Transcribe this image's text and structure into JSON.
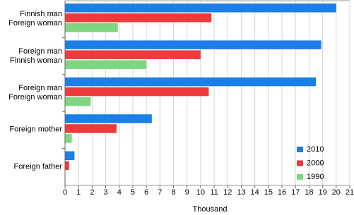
{
  "chart_data": {
    "type": "hbar",
    "categories": [
      "Finnish man\nForeign woman",
      "Foreign man\nFinnish woman",
      "Foreign man\nForeign woman",
      "Foreign mother",
      "Foreign father"
    ],
    "series": [
      {
        "name": "2010",
        "color": "#1a7fe6",
        "values": [
          20.0,
          18.9,
          18.5,
          6.4,
          0.7
        ]
      },
      {
        "name": "2000",
        "color": "#ee3a3a",
        "values": [
          10.8,
          10.0,
          10.6,
          3.8,
          0.3
        ]
      },
      {
        "name": "1990",
        "color": "#80d680",
        "values": [
          3.9,
          6.0,
          1.9,
          0.5,
          0.0
        ]
      }
    ],
    "xlabel": "Thousand",
    "xlim": [
      0,
      21
    ],
    "xticks": [
      0,
      1,
      2,
      3,
      4,
      5,
      6,
      7,
      8,
      9,
      10,
      11,
      12,
      13,
      14,
      15,
      16,
      17,
      18,
      19,
      20,
      21
    ],
    "grid": true,
    "legend": "lower right"
  }
}
